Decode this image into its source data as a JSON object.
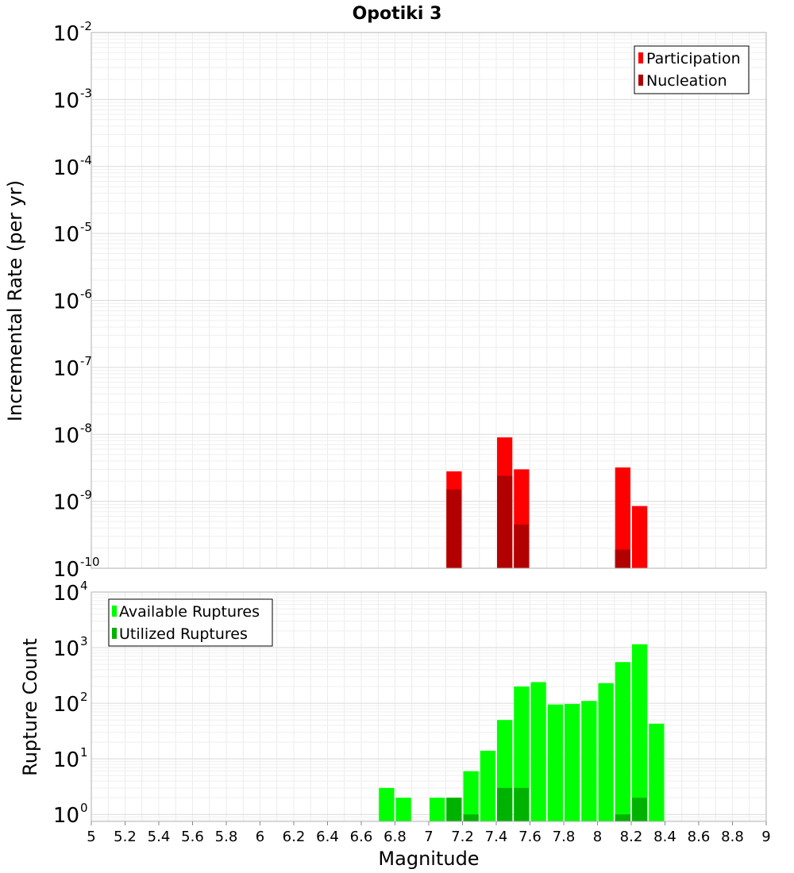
{
  "chart_data": [
    {
      "type": "bar",
      "title": "Opotiki 3",
      "ylabel": "Incremental Rate (per yr)",
      "xlim": [
        5,
        9
      ],
      "ylim": [
        1e-10,
        0.01
      ],
      "yscale": "log",
      "y_ticks": [
        {
          "base": "10",
          "exp": "-2",
          "v": 0.01
        },
        {
          "base": "10",
          "exp": "-3",
          "v": 0.001
        },
        {
          "base": "10",
          "exp": "-4",
          "v": 0.0001
        },
        {
          "base": "10",
          "exp": "-5",
          "v": 1e-05
        },
        {
          "base": "10",
          "exp": "-6",
          "v": 1e-06
        },
        {
          "base": "10",
          "exp": "-7",
          "v": 1e-07
        },
        {
          "base": "10",
          "exp": "-8",
          "v": 1e-08
        },
        {
          "base": "10",
          "exp": "-9",
          "v": 1e-09
        },
        {
          "base": "10",
          "exp": "-10",
          "v": 1e-10
        }
      ],
      "grid": true,
      "legend_position": "top-right",
      "series": [
        {
          "name": "Participation",
          "color": "#ff0000",
          "x": [
            7.15,
            7.45,
            7.55,
            8.15,
            8.25
          ],
          "values": [
            2.8e-09,
            9e-09,
            3e-09,
            3.2e-09,
            8.5e-10
          ]
        },
        {
          "name": "Nucleation",
          "color": "#b20000",
          "x": [
            7.15,
            7.45,
            7.55,
            8.15
          ],
          "values": [
            1.5e-09,
            2.4e-09,
            4.5e-10,
            1.9e-10
          ]
        }
      ]
    },
    {
      "type": "bar",
      "xlabel": "Magnitude",
      "ylabel": "Rupture Count",
      "xlim": [
        5,
        9
      ],
      "ylim": [
        0.75,
        10000
      ],
      "yscale": "log",
      "y_ticks": [
        {
          "base": "10",
          "exp": "4",
          "v": 10000
        },
        {
          "base": "10",
          "exp": "3",
          "v": 1000
        },
        {
          "base": "10",
          "exp": "2",
          "v": 100
        },
        {
          "base": "10",
          "exp": "1",
          "v": 10
        },
        {
          "base": "10",
          "exp": "0",
          "v": 1
        }
      ],
      "x_ticks": [
        "5",
        "5.2",
        "5.4",
        "5.6",
        "5.8",
        "6",
        "6.2",
        "6.4",
        "6.6",
        "6.8",
        "7",
        "7.2",
        "7.4",
        "7.6",
        "7.8",
        "8",
        "8.2",
        "8.4",
        "8.6",
        "8.8",
        "9"
      ],
      "grid": true,
      "legend_position": "top-left",
      "series": [
        {
          "name": "Available Ruptures",
          "color": "#00ff00",
          "x": [
            6.75,
            6.85,
            7.05,
            7.15,
            7.25,
            7.35,
            7.45,
            7.55,
            7.65,
            7.75,
            7.85,
            7.95,
            8.05,
            8.15,
            8.25,
            8.35
          ],
          "values": [
            3,
            2,
            2,
            2,
            6,
            14,
            50,
            200,
            240,
            95,
            97,
            110,
            230,
            550,
            1150,
            43
          ]
        },
        {
          "name": "Utilized Ruptures",
          "color": "#00b200",
          "x": [
            7.15,
            7.25,
            7.45,
            7.55,
            8.15,
            8.25
          ],
          "values": [
            2,
            1,
            3,
            3,
            1,
            2
          ]
        }
      ]
    }
  ]
}
